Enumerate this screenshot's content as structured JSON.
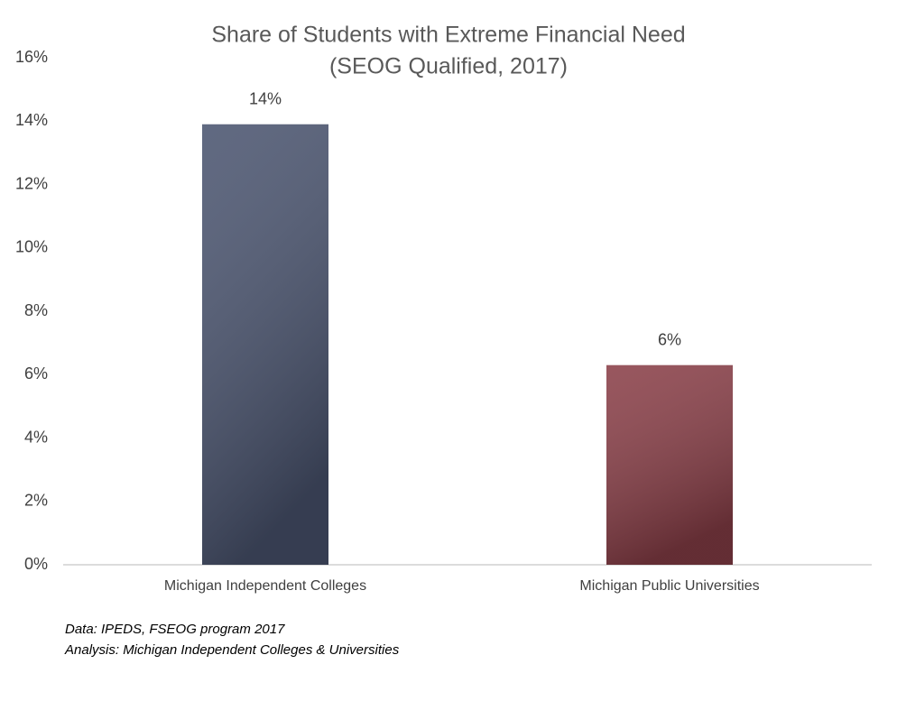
{
  "chart_data": {
    "type": "bar",
    "title": "Share of Students with Extreme Financial Need",
    "subtitle": "(SEOG Qualified, 2017)",
    "categories": [
      "Michigan Independent Colleges",
      "Michigan Public Universities"
    ],
    "values": [
      13.9,
      6.3
    ],
    "value_labels": [
      "14%",
      "6%"
    ],
    "colors": [
      "#4b5570",
      "#8a3f48"
    ],
    "ylim": [
      0,
      16
    ],
    "yticks": [
      {
        "value": 0,
        "label": "0%"
      },
      {
        "value": 2,
        "label": "2%"
      },
      {
        "value": 4,
        "label": "4%"
      },
      {
        "value": 6,
        "label": "6%"
      },
      {
        "value": 8,
        "label": "8%"
      },
      {
        "value": 10,
        "label": "10%"
      },
      {
        "value": 12,
        "label": "12%"
      },
      {
        "value": 14,
        "label": "14%"
      },
      {
        "value": 16,
        "label": "16%"
      }
    ],
    "grid": false,
    "notes": [
      "Data: IPEDS, FSEOG program 2017",
      "Analysis: Michigan Independent Colleges & Universities"
    ]
  }
}
